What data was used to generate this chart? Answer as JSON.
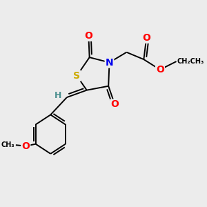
{
  "background_color": "#ececec",
  "bond_color": "#000000",
  "atom_colors": {
    "S": "#ccaa00",
    "N": "#0000ee",
    "O": "#ff0000",
    "H": "#4a8f8f",
    "C": "#000000"
  },
  "bond_width": 1.4,
  "dbo": 0.013,
  "figsize": [
    3.0,
    3.0
  ],
  "dpi": 100
}
